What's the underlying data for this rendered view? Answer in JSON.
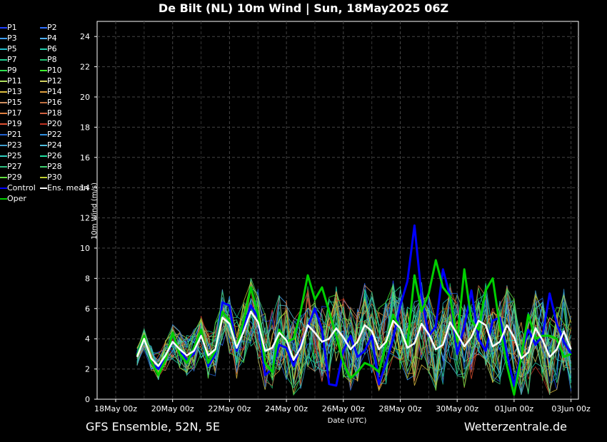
{
  "header": {
    "title": "De Bilt  (NL)  10m Wind | Sun, 18May2025 06Z"
  },
  "footer": {
    "left": "GFS Ensemble, 52N, 5E",
    "right": "Wetterzentrale.de"
  },
  "chart_data": {
    "type": "line",
    "xlabel": "Date (UTC)",
    "ylabel": "10m Wind (m/s)",
    "ylim": [
      0,
      25
    ],
    "yticks": [
      0,
      2,
      4,
      6,
      8,
      10,
      12,
      14,
      16,
      18,
      20,
      22,
      24
    ],
    "xlim_days": [
      0,
      16
    ],
    "xtick_labels": [
      "18May 00z",
      "20May 00z",
      "22May 00z",
      "24May 00z",
      "26May 00z",
      "28May 00z",
      "30May 00z",
      "01Jun 00z",
      "03Jun 00z"
    ],
    "grid": true,
    "legend_placement": "left",
    "legend": [
      {
        "name": "P1",
        "color": "#1f3fff"
      },
      {
        "name": "P2",
        "color": "#2f6fff"
      },
      {
        "name": "P3",
        "color": "#3f9fff"
      },
      {
        "name": "P4",
        "color": "#4fb0ff"
      },
      {
        "name": "P5",
        "color": "#20c0d0"
      },
      {
        "name": "P6",
        "color": "#20d0b0"
      },
      {
        "name": "P7",
        "color": "#20d090"
      },
      {
        "name": "P8",
        "color": "#20c070"
      },
      {
        "name": "P9",
        "color": "#30e050"
      },
      {
        "name": "P10",
        "color": "#40f030"
      },
      {
        "name": "P11",
        "color": "#b0e060"
      },
      {
        "name": "P12",
        "color": "#d0d060"
      },
      {
        "name": "P13",
        "color": "#e0c040"
      },
      {
        "name": "P14",
        "color": "#e0a040"
      },
      {
        "name": "P15",
        "color": "#d09060"
      },
      {
        "name": "P16",
        "color": "#c07040"
      },
      {
        "name": "P17",
        "color": "#e08040"
      },
      {
        "name": "P18",
        "color": "#d06040"
      },
      {
        "name": "P19",
        "color": "#e05030"
      },
      {
        "name": "P20",
        "color": "#c03020"
      },
      {
        "name": "P21",
        "color": "#2060d0"
      },
      {
        "name": "P22",
        "color": "#3090e0"
      },
      {
        "name": "P23",
        "color": "#40a0d0"
      },
      {
        "name": "P24",
        "color": "#50c0e0"
      },
      {
        "name": "P25",
        "color": "#30d0c0"
      },
      {
        "name": "P26",
        "color": "#20e0a0"
      },
      {
        "name": "P27",
        "color": "#30c080"
      },
      {
        "name": "P28",
        "color": "#40d070"
      },
      {
        "name": "P29",
        "color": "#60e040"
      },
      {
        "name": "P30",
        "color": "#c0d030"
      },
      {
        "name": "Control",
        "color": "#0000ff"
      },
      {
        "name": "Ens. mean",
        "color": "#ffffff"
      },
      {
        "name": "Oper",
        "color": "#00d000"
      }
    ],
    "x_days": [
      0.75,
      1.0,
      1.25,
      1.5,
      1.75,
      2.0,
      2.25,
      2.5,
      2.75,
      3.0,
      3.25,
      3.5,
      3.75,
      4.0,
      4.25,
      4.5,
      4.75,
      5.0,
      5.25,
      5.5,
      5.75,
      6.0,
      6.25,
      6.5,
      6.75,
      7.0,
      7.25,
      7.5,
      7.75,
      8.0,
      8.25,
      8.5,
      8.75,
      9.0,
      9.25,
      9.5,
      9.75,
      10.0,
      10.25,
      10.5,
      10.75,
      11.0,
      11.25,
      11.5,
      11.75,
      12.0,
      12.25,
      12.5,
      12.75,
      13.0,
      13.25,
      13.5,
      13.75,
      14.0,
      14.25,
      14.5,
      14.75,
      15.0,
      15.25,
      15.5,
      15.75,
      16.0
    ],
    "series": [
      {
        "name": "Control",
        "values": [
          3.0,
          4.2,
          2.4,
          2.0,
          2.8,
          3.8,
          3.3,
          2.6,
          3.0,
          4.6,
          2.2,
          3.0,
          6.4,
          6.2,
          3.2,
          4.8,
          6.2,
          5.4,
          1.6,
          2.0,
          3.6,
          3.4,
          2.2,
          3.6,
          4.8,
          6.0,
          4.6,
          1.0,
          0.9,
          3.2,
          4.2,
          2.8,
          3.2,
          4.2,
          1.0,
          2.4,
          4.0,
          6.2,
          7.8,
          11.5,
          6.8,
          4.2,
          4.8,
          8.6,
          6.8,
          3.0,
          4.8,
          7.2,
          4.0,
          3.2,
          5.2,
          5.4,
          3.0,
          0.9,
          3.0,
          4.6,
          3.6,
          4.2,
          7.0,
          5.0,
          3.8,
          3.0
        ]
      },
      {
        "name": "Ens. mean",
        "values": [
          2.8,
          4.0,
          2.7,
          2.2,
          2.9,
          3.8,
          3.3,
          2.9,
          3.2,
          4.2,
          2.9,
          3.3,
          5.4,
          5.0,
          3.4,
          4.5,
          5.8,
          5.1,
          3.2,
          3.4,
          4.4,
          3.9,
          2.6,
          3.4,
          4.9,
          4.4,
          3.8,
          4.0,
          4.7,
          4.1,
          3.3,
          3.8,
          4.9,
          4.5,
          3.3,
          3.8,
          5.2,
          4.7,
          3.4,
          3.7,
          5.0,
          4.3,
          3.3,
          3.6,
          5.1,
          4.3,
          3.5,
          4.1,
          5.2,
          4.9,
          3.5,
          3.8,
          4.9,
          4.1,
          2.7,
          3.1,
          4.7,
          3.9,
          2.8,
          3.3,
          4.5,
          3.3
        ]
      },
      {
        "name": "Oper",
        "values": [
          2.9,
          4.2,
          2.5,
          1.6,
          2.6,
          4.4,
          3.0,
          2.4,
          3.4,
          4.6,
          2.4,
          3.2,
          5.8,
          5.2,
          3.4,
          5.2,
          7.4,
          5.6,
          2.4,
          1.8,
          4.6,
          3.8,
          4.0,
          5.8,
          8.2,
          6.6,
          7.4,
          5.8,
          4.2,
          2.4,
          1.4,
          1.8,
          2.4,
          2.2,
          1.8,
          3.6,
          5.6,
          4.6,
          3.6,
          8.2,
          5.8,
          7.0,
          9.2,
          7.4,
          6.8,
          3.8,
          8.6,
          5.2,
          4.6,
          7.2,
          8.0,
          4.8,
          2.2,
          0.3,
          2.8,
          5.6,
          4.0,
          4.2,
          4.2,
          4.0,
          2.8,
          3.0
        ]
      }
    ]
  }
}
